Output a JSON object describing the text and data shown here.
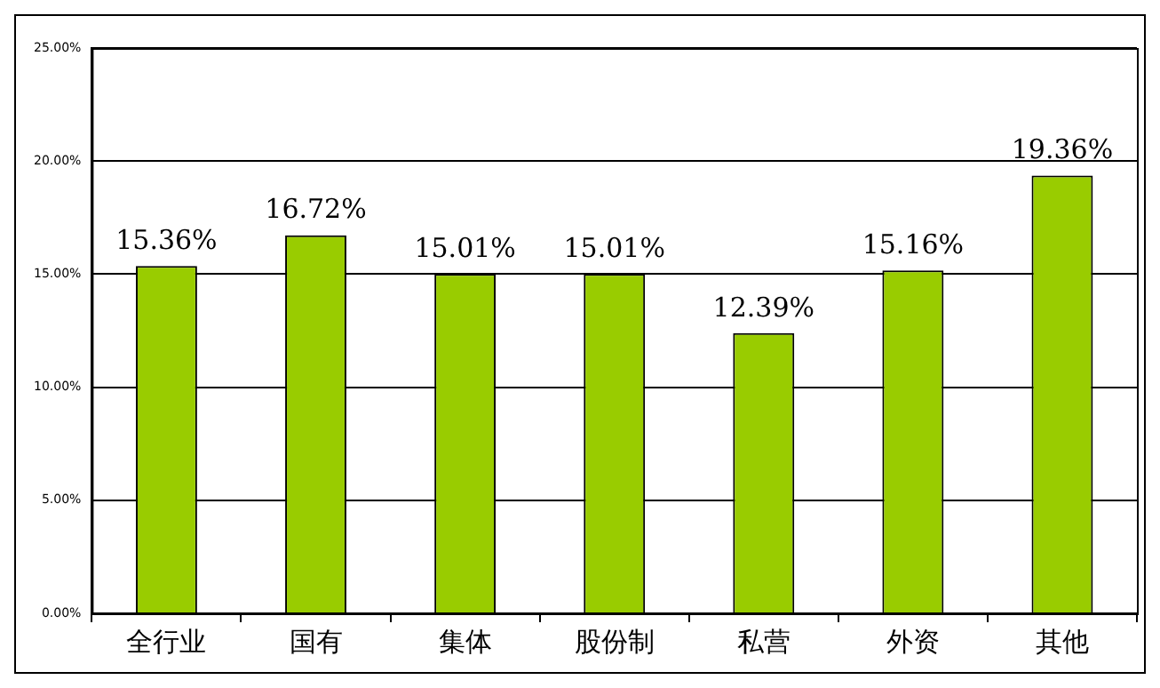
{
  "chart_data": {
    "type": "bar",
    "categories": [
      "全行业",
      "国有",
      "集体",
      "股份制",
      "私营",
      "外资",
      "其他"
    ],
    "values": [
      15.36,
      16.72,
      15.01,
      15.01,
      12.39,
      15.16,
      19.36
    ],
    "value_labels": [
      "15.36%",
      "16.72%",
      "15.01%",
      "15.01%",
      "12.39%",
      "15.16%",
      "19.36%"
    ],
    "color": "#99cc00",
    "ylim": [
      0,
      25
    ],
    "yticks": [
      {
        "value": 0,
        "label": "0.00%"
      },
      {
        "value": 5,
        "label": "5.00%"
      },
      {
        "value": 10,
        "label": "10.00%"
      },
      {
        "value": 15,
        "label": "15.00%"
      },
      {
        "value": 20,
        "label": "20.00%"
      },
      {
        "value": 25,
        "label": "25.00%"
      }
    ],
    "grid": "y",
    "legend": false
  }
}
